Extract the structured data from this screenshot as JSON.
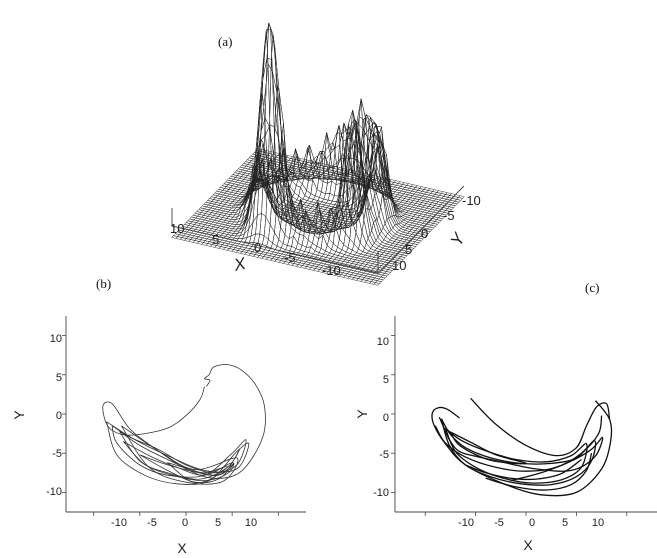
{
  "chart_data": [
    {
      "type": "surface3d",
      "panel_label": "(a)",
      "xlabel": "X",
      "ylabel": "Y",
      "x_ticks": [
        "10",
        "5",
        "0",
        "-5",
        "-10"
      ],
      "y_ticks": [
        "-10",
        "-5",
        "0",
        "5",
        "10"
      ],
      "xlim": [
        -12,
        12
      ],
      "ylim": [
        -12,
        12
      ],
      "grid": false
    },
    {
      "type": "line",
      "panel_label": "(b)",
      "xlabel": "X",
      "ylabel": "Y",
      "x_ticks": [
        "-10",
        "-5",
        "0",
        "5",
        "10"
      ],
      "y_ticks": [
        "10",
        "5",
        "0",
        "-5",
        "-10"
      ],
      "xlim": [
        -13,
        13
      ],
      "ylim": [
        -12.5,
        12.5
      ],
      "grid": false,
      "series": [
        {
          "x": [
            2,
            1.5,
            0,
            -2,
            -5,
            -7,
            -8.5,
            -9,
            -8,
            -6,
            -3,
            0,
            3,
            6,
            8.3,
            8.5,
            7.5,
            6,
            4.5,
            3,
            2.5,
            2,
            2.6,
            2.2
          ],
          "y": [
            3.5,
            1.8,
            -0.2,
            -1.8,
            -2.6,
            -2.6,
            -1.5,
            1,
            1.3,
            -2,
            -4.7,
            -7,
            -8.2,
            -7.3,
            -3,
            1,
            3.8,
            5.6,
            6.3,
            6,
            5,
            4.5,
            4.3,
            3.5
          ]
        },
        {
          "x": [
            -8,
            -6,
            -3,
            0,
            3,
            5.5,
            6.5,
            5,
            2,
            -2,
            -5,
            -7.5,
            -8
          ],
          "y": [
            -1.5,
            -3,
            -4.5,
            -6.5,
            -7.5,
            -6.5,
            -3.3,
            -5,
            -7.8,
            -7.8,
            -6.5,
            -3.7,
            -1.5
          ]
        },
        {
          "x": [
            -7.2,
            -5,
            -2,
            1,
            4,
            5.8,
            4.5,
            1.5,
            -2,
            -5,
            -7.2
          ],
          "y": [
            -2.2,
            -4,
            -5.8,
            -7.3,
            -7.6,
            -4.5,
            -6.8,
            -8.3,
            -7.5,
            -6,
            -2.2
          ]
        },
        {
          "x": [
            -6.8,
            -4,
            -1,
            2,
            5,
            4.5,
            2,
            -1.5,
            -4.5,
            -6.8
          ],
          "y": [
            -3.5,
            -5.3,
            -6.8,
            -7.8,
            -6.2,
            -7.6,
            -8.5,
            -7.8,
            -6.4,
            -3.5
          ]
        },
        {
          "x": [
            -5,
            -2.5,
            1,
            3.5,
            5.2,
            3.5,
            1,
            -2,
            -5
          ],
          "y": [
            -5.2,
            -6.3,
            -7.4,
            -7.8,
            -6.3,
            -8.3,
            -8.7,
            -7.2,
            -5.2
          ]
        },
        {
          "x": [
            -7,
            -3,
            1,
            5.5,
            4,
            0,
            -4,
            -7
          ],
          "y": [
            -1.5,
            -4.7,
            -7.1,
            -5.6,
            -8.6,
            -8.7,
            -6.8,
            -1.5
          ]
        },
        {
          "x": [
            -2,
            0,
            2,
            4.5,
            2.5,
            0.5,
            -2
          ],
          "y": [
            -6.2,
            -6.9,
            -7.5,
            -6.7,
            -8.4,
            -8.6,
            -6.2
          ]
        },
        {
          "x": [
            -8.6,
            -5.5,
            -2,
            2,
            5.5,
            6.8,
            5.5,
            2.5,
            -1,
            -4.5,
            -7.5,
            -8.6
          ],
          "y": [
            -1,
            -3.3,
            -5.3,
            -7.2,
            -7,
            -3.8,
            -4.8,
            -8.5,
            -8.9,
            -7.8,
            -5.2,
            -1
          ]
        }
      ]
    },
    {
      "type": "scatter",
      "panel_label": "(c)",
      "xlabel": "X",
      "ylabel": "Y",
      "x_ticks": [
        "-10",
        "-5",
        "0",
        "5",
        "10"
      ],
      "y_ticks": [
        "10",
        "5",
        "0",
        "-5",
        "-10"
      ],
      "xlim": [
        -13,
        13
      ],
      "ylim": [
        -12.5,
        12.5
      ],
      "grid": false,
      "series": [
        {
          "x": [
            -5.5,
            -3,
            0,
            3,
            5,
            6,
            7,
            8,
            8.3
          ],
          "y": [
            2,
            -1.3,
            -4,
            -5.3,
            -4.3,
            -1.5,
            0.9,
            1.3,
            -0.7
          ]
        },
        {
          "x": [
            -6.6,
            -7.8,
            -8.7,
            -9.3,
            -9.1,
            -8,
            -6,
            -2,
            1.5,
            5,
            7.5,
            8.4,
            8.3,
            6.9
          ],
          "y": [
            -0.5,
            0.6,
            0.8,
            0.1,
            -1.5,
            -3.8,
            -6.5,
            -9,
            -10.3,
            -10,
            -7,
            -3.5,
            -0.7,
            1.7
          ]
        },
        {
          "x": [
            -8.6,
            -8.2,
            -7.5,
            -6.6,
            -5,
            -2.5,
            1,
            4.5,
            6.8,
            7.6,
            6.5,
            4.5,
            1.5,
            -1.5
          ],
          "y": [
            -0.4,
            -1.6,
            -3.5,
            -4.8,
            -5.4,
            -6.1,
            -7,
            -7.2,
            -5.5,
            -3,
            -4.5,
            -6,
            -7.5,
            -8.5
          ]
        },
        {
          "x": [
            -8.4,
            -7.5,
            -6,
            -3.5,
            -0.5,
            2.5,
            5,
            6.8,
            6.5,
            5,
            2.5,
            -0.5,
            -3.5,
            -6,
            -7.6,
            -8.4
          ],
          "y": [
            -0.6,
            -2.6,
            -4.3,
            -5.6,
            -6.3,
            -6.3,
            -5.6,
            -3.4,
            -6,
            -8,
            -9,
            -8.9,
            -8,
            -6.5,
            -4,
            -0.6
          ]
        },
        {
          "x": [
            -8,
            -6.5,
            -4,
            -1,
            2,
            4.5,
            6,
            5.5,
            3.5,
            0.5,
            -2.5,
            -5,
            -7,
            -8
          ],
          "y": [
            -1.8,
            -3.3,
            -4.7,
            -5.8,
            -6.1,
            -5.3,
            -3.8,
            -6.8,
            -8.4,
            -8.8,
            -8.1,
            -6.8,
            -4.8,
            -1.8
          ]
        },
        {
          "x": [
            -7.5,
            -5.5,
            -3,
            0,
            -3.5,
            -6.5,
            -7.5
          ],
          "y": [
            -2.3,
            -3.6,
            -5.2,
            -6.3,
            -5.9,
            -4.1,
            -2.3
          ]
        },
        {
          "x": [
            -9,
            -8,
            -6,
            -3,
            0,
            3,
            5.5,
            7.2,
            7.5
          ],
          "y": [
            -1.5,
            -3.7,
            -5.5,
            -6.8,
            -7.3,
            -6.8,
            -5,
            -2.5,
            -0.2
          ]
        },
        {
          "x": [
            -4,
            -1,
            2,
            4.5,
            6,
            6.5
          ],
          "y": [
            -8.2,
            -9.3,
            -9.7,
            -9,
            -7.2,
            -5
          ]
        },
        {
          "x": [
            -6,
            -4,
            -1.5,
            1,
            3.5,
            5.5
          ],
          "y": [
            -6.5,
            -7.5,
            -8.2,
            -8.3,
            -7.6,
            -5.8
          ]
        }
      ]
    }
  ]
}
